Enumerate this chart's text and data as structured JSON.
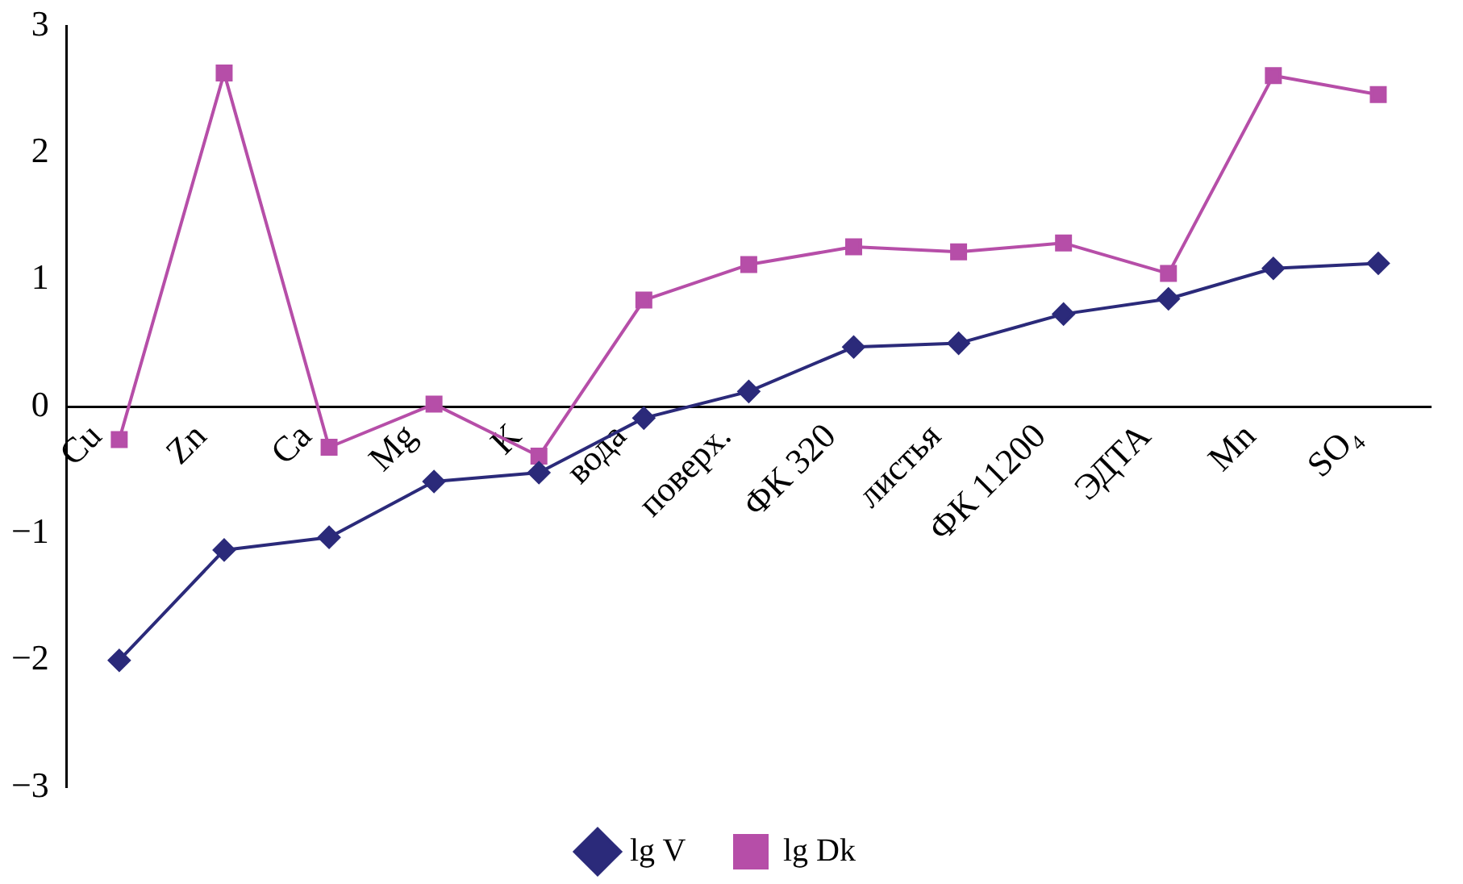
{
  "chart_data": {
    "type": "line",
    "categories": [
      "Cu",
      "Zn",
      "Ca",
      "Mg",
      "K",
      "вода",
      "поверх.",
      "ФК 320",
      "листья",
      "ФК 11200",
      "ЭДТА",
      "Mn",
      "SO₄"
    ],
    "series": [
      {
        "name": "lg V",
        "color": "#2b2a7a",
        "marker": "diamond",
        "values": [
          -2.0,
          -1.13,
          -1.03,
          -0.59,
          -0.52,
          -0.09,
          0.12,
          0.47,
          0.5,
          0.73,
          0.85,
          1.09,
          1.13
        ]
      },
      {
        "name": "lg Dk",
        "color": "#b64ea8",
        "marker": "square",
        "values": [
          -0.26,
          2.63,
          -0.32,
          0.02,
          -0.39,
          0.84,
          1.12,
          1.26,
          1.22,
          1.29,
          1.05,
          2.61,
          2.46
        ]
      }
    ],
    "ylim": [
      -3,
      3
    ],
    "yticks": [
      {
        "value": -3,
        "label": "−3"
      },
      {
        "value": -2,
        "label": "−2"
      },
      {
        "value": -1,
        "label": "−1"
      },
      0,
      1,
      2,
      3
    ],
    "grid": false,
    "legend": "bottom",
    "line_style": "solid"
  }
}
